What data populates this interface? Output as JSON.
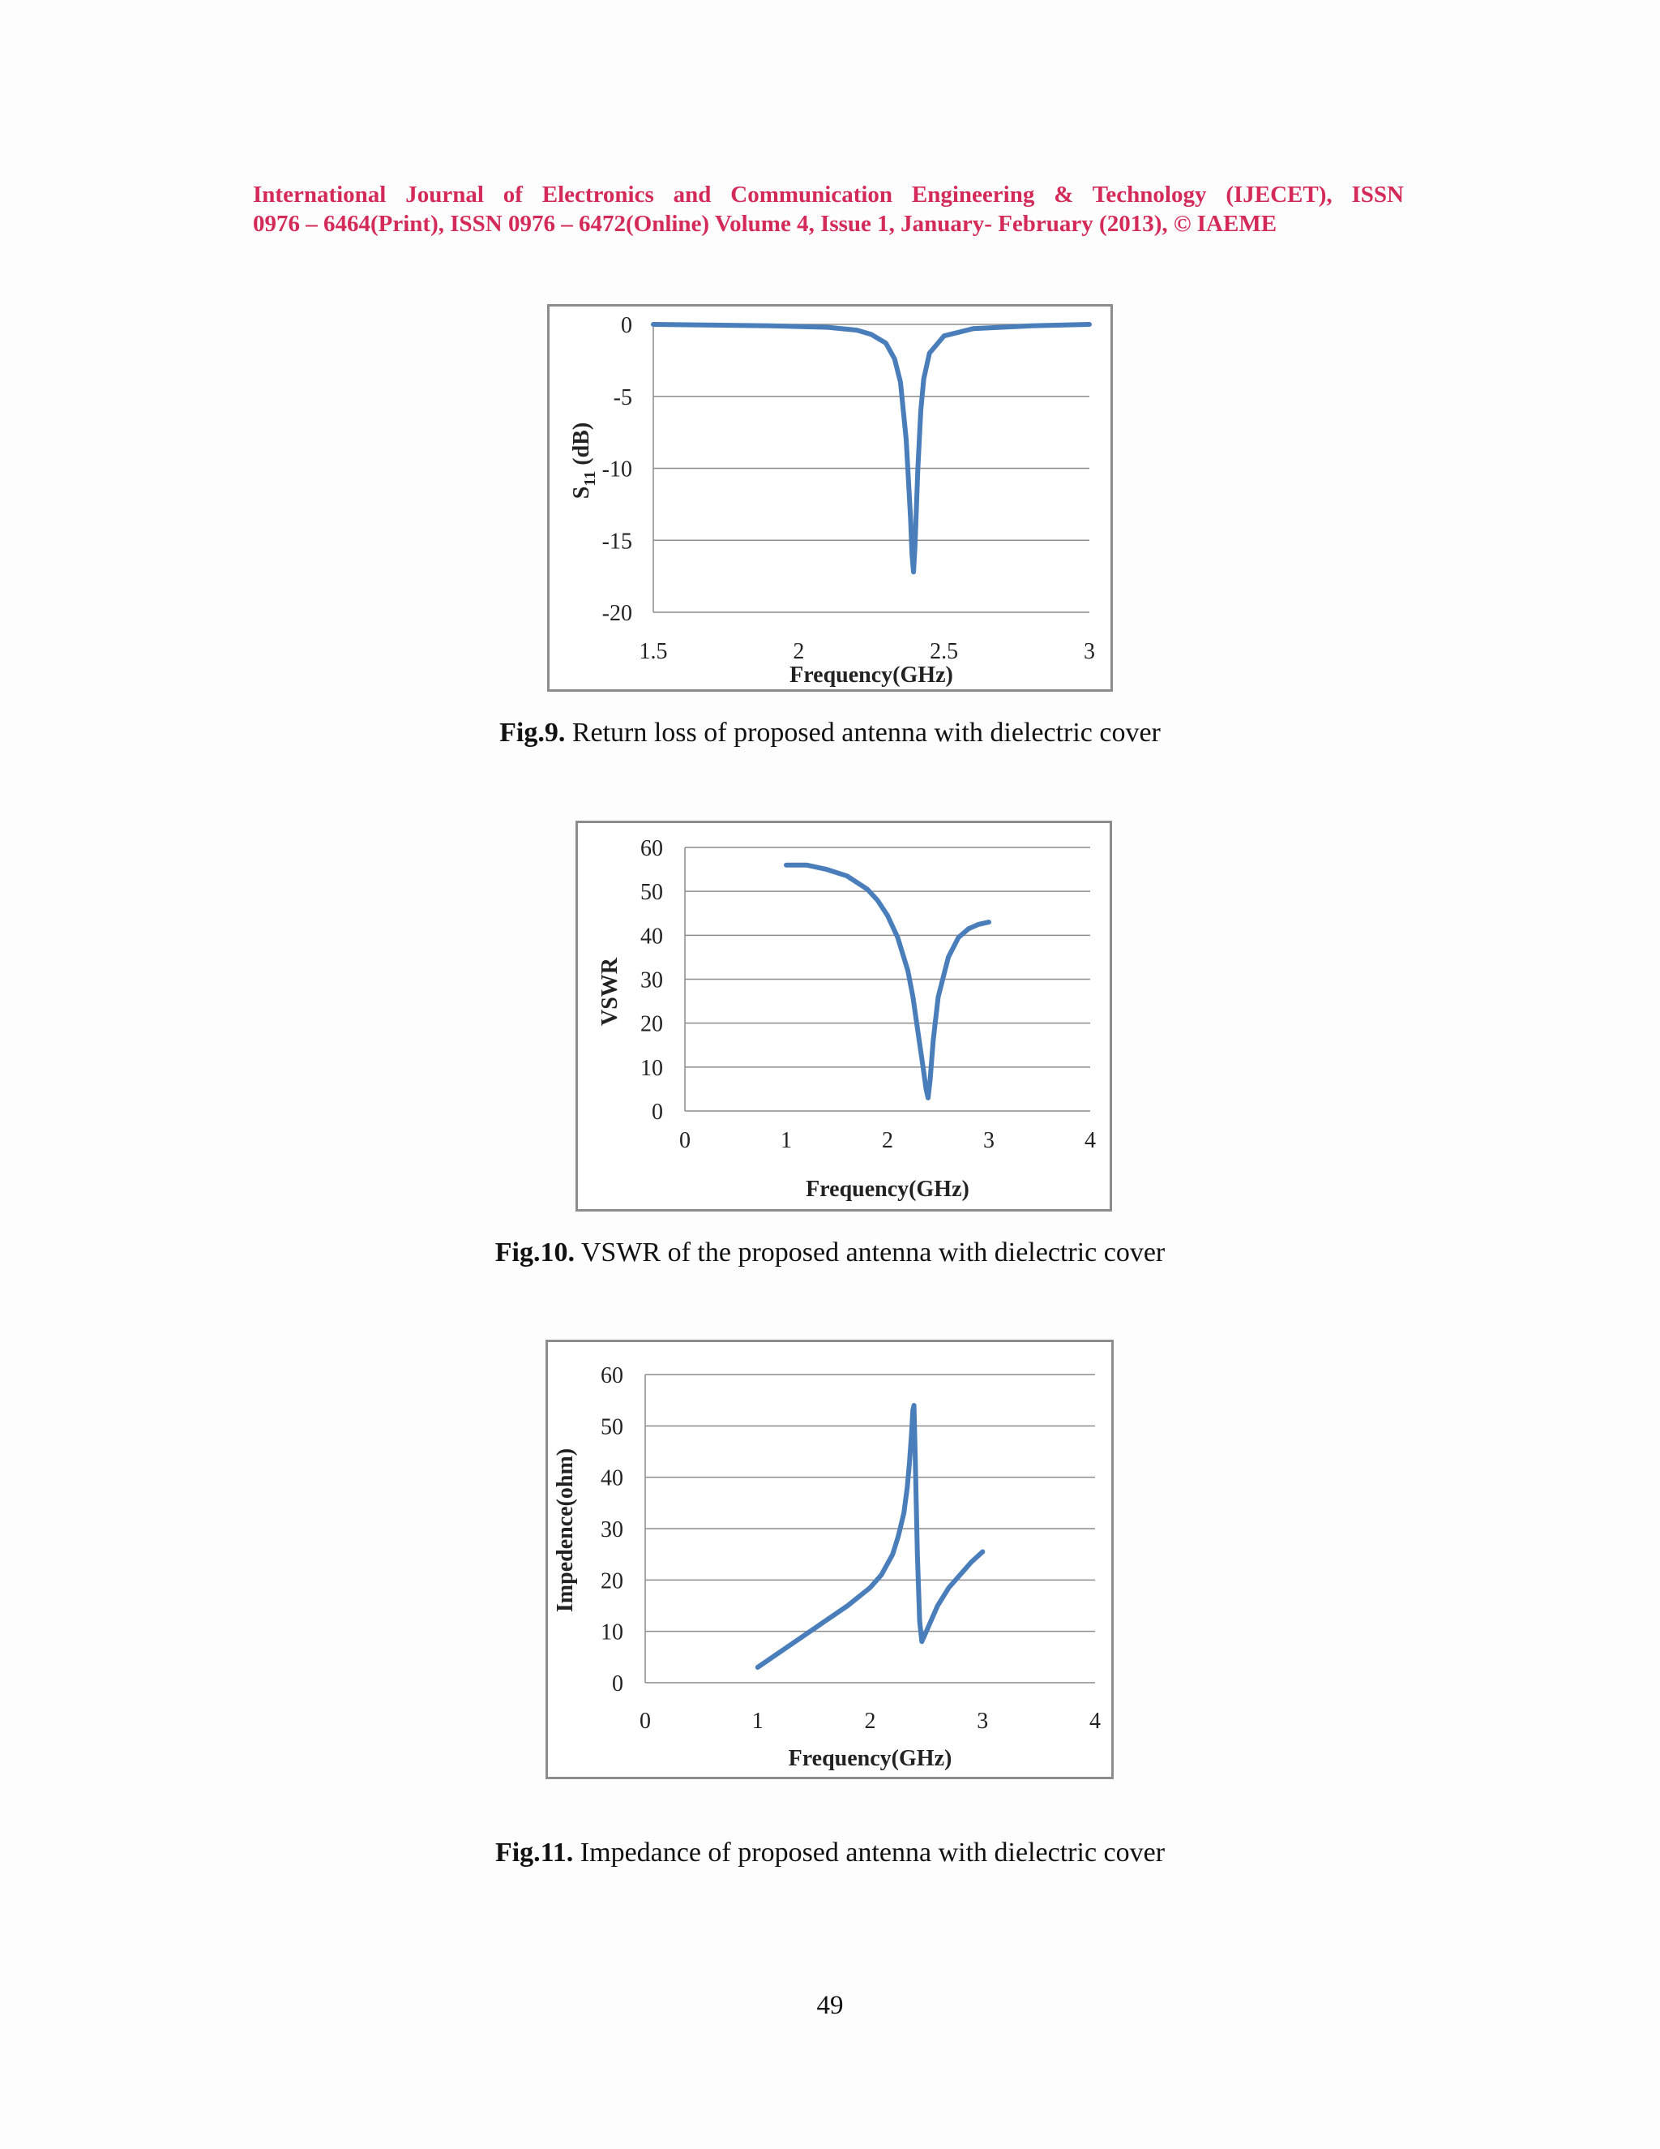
{
  "header": {
    "line1": "International Journal of Electronics and Communication Engineering & Technology (IJECET), ISSN",
    "line2": "0976 – 6464(Print), ISSN 0976 – 6472(Online) Volume 4, Issue 1, January- February (2013), © IAEME"
  },
  "page_number": "49",
  "colors": {
    "header": "#d42a5a",
    "series": "#4a7ebb",
    "grid": "#8c8c8c"
  },
  "figures": [
    {
      "label": "Fig.9.",
      "caption": "Return loss of proposed antenna with dielectric cover"
    },
    {
      "label": "Fig.10.",
      "caption": "VSWR of the proposed antenna with dielectric cover"
    },
    {
      "label": "Fig.11.",
      "caption": "Impedance of proposed antenna with dielectric cover"
    }
  ],
  "chart_data": [
    {
      "type": "line",
      "xlabel": "Frequency(GHz)",
      "ylabel_main": "S",
      "ylabel_sub": "11",
      "ylabel_rest": " (dB)",
      "xlim": [
        1.5,
        3
      ],
      "ylim": [
        -20,
        0
      ],
      "xticks": [
        "1.5",
        "2",
        "2.5",
        "3"
      ],
      "xtick_values": [
        1.5,
        2,
        2.5,
        3
      ],
      "yticks": [
        "0",
        "-5",
        "-10",
        "-15",
        "-20"
      ],
      "ytick_values": [
        0,
        -5,
        -10,
        -15,
        -20
      ],
      "grid": true,
      "series": [
        {
          "x": [
            1.5,
            1.9,
            2.1,
            2.2,
            2.25,
            2.3,
            2.33,
            2.35,
            2.37,
            2.385,
            2.39,
            2.395,
            2.4,
            2.41,
            2.42,
            2.43,
            2.45,
            2.5,
            2.6,
            2.8,
            3.0
          ],
          "y": [
            0,
            -0.1,
            -0.2,
            -0.4,
            -0.7,
            -1.3,
            -2.4,
            -4.0,
            -8.0,
            -13.5,
            -16.0,
            -17.2,
            -15.5,
            -10.0,
            -6.0,
            -3.8,
            -2.0,
            -0.8,
            -0.3,
            -0.1,
            0
          ]
        }
      ]
    },
    {
      "type": "line",
      "xlabel": "Frequency(GHz)",
      "ylabel_main": "VSWR",
      "xlim": [
        0,
        4
      ],
      "ylim": [
        0,
        60
      ],
      "xticks": [
        "0",
        "1",
        "2",
        "3",
        "4"
      ],
      "xtick_values": [
        0,
        1,
        2,
        3,
        4
      ],
      "yticks": [
        "60",
        "50",
        "40",
        "30",
        "20",
        "10",
        "0"
      ],
      "ytick_values": [
        60,
        50,
        40,
        30,
        20,
        10,
        0
      ],
      "grid": true,
      "series": [
        {
          "x": [
            1.0,
            1.2,
            1.4,
            1.6,
            1.8,
            1.9,
            2.0,
            2.1,
            2.2,
            2.25,
            2.3,
            2.35,
            2.38,
            2.4,
            2.42,
            2.45,
            2.5,
            2.6,
            2.7,
            2.8,
            2.9,
            3.0
          ],
          "y": [
            56,
            56,
            55,
            53.5,
            50.5,
            48,
            44.5,
            39.5,
            32,
            26,
            18,
            10,
            5,
            3,
            7,
            16,
            26,
            35,
            39.5,
            41.5,
            42.5,
            43
          ]
        }
      ]
    },
    {
      "type": "line",
      "xlabel": "Frequency(GHz)",
      "ylabel_main": "Impedence(ohm)",
      "xlim": [
        0,
        4
      ],
      "ylim": [
        0,
        60
      ],
      "xticks": [
        "0",
        "1",
        "2",
        "3",
        "4"
      ],
      "xtick_values": [
        0,
        1,
        2,
        3,
        4
      ],
      "yticks": [
        "60",
        "50",
        "40",
        "30",
        "20",
        "10",
        "0"
      ],
      "ytick_values": [
        60,
        50,
        40,
        30,
        20,
        10,
        0
      ],
      "grid": true,
      "series": [
        {
          "x": [
            1.0,
            1.2,
            1.4,
            1.6,
            1.8,
            2.0,
            2.1,
            2.2,
            2.25,
            2.3,
            2.33,
            2.35,
            2.37,
            2.38,
            2.39,
            2.4,
            2.42,
            2.44,
            2.46,
            2.5,
            2.6,
            2.7,
            2.8,
            2.9,
            3.0
          ],
          "y": [
            3,
            6,
            9,
            12,
            15,
            18.5,
            21,
            25,
            28.5,
            33,
            38,
            43,
            49,
            53,
            54,
            45,
            25,
            12,
            8,
            10,
            15,
            18.5,
            21,
            23.5,
            25.5
          ]
        }
      ]
    }
  ]
}
